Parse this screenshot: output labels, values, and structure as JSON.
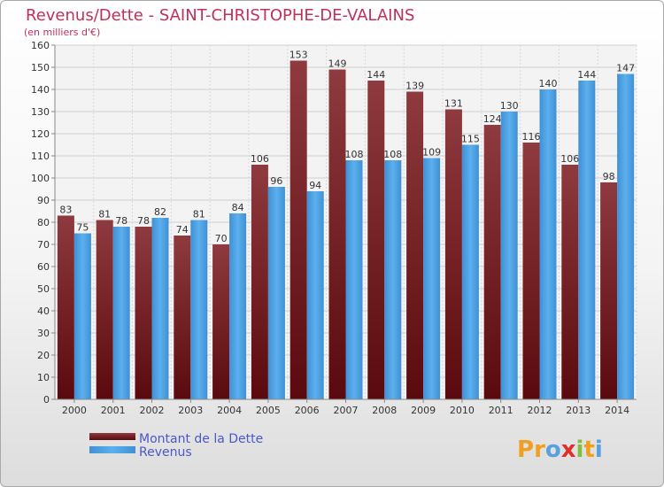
{
  "chart_data": {
    "type": "bar",
    "title": "Revenus/Dette - SAINT-CHRISTOPHE-DE-VALAINS",
    "subtitle": "(en milliers d'€)",
    "categories": [
      "2000",
      "2001",
      "2002",
      "2003",
      "2004",
      "2005",
      "2006",
      "2007",
      "2008",
      "2009",
      "2010",
      "2011",
      "2012",
      "2013",
      "2014"
    ],
    "series": [
      {
        "name": "Montant de la Dette",
        "color": "#7a1a1e",
        "values": [
          83,
          81,
          78,
          74,
          70,
          106,
          153,
          149,
          144,
          139,
          131,
          124,
          116,
          106,
          98
        ]
      },
      {
        "name": "Revenus",
        "color": "#4aa0e0",
        "values": [
          75,
          78,
          82,
          81,
          84,
          96,
          94,
          108,
          108,
          109,
          115,
          130,
          140,
          144,
          147
        ]
      }
    ],
    "ylim": [
      0,
      160
    ],
    "yticks": [
      0,
      10,
      20,
      30,
      40,
      50,
      60,
      70,
      80,
      90,
      100,
      110,
      120,
      130,
      140,
      150,
      160
    ],
    "grid": true,
    "legend": "bottom-left"
  },
  "logo": {
    "letters": [
      "P",
      "r",
      "o",
      "x",
      "i",
      "t",
      "i"
    ],
    "colors": [
      "#f0a020",
      "#f0a020",
      "#5aa0e0",
      "#e0302a",
      "#80c040",
      "#f0a020",
      "#5aa0e0"
    ]
  }
}
